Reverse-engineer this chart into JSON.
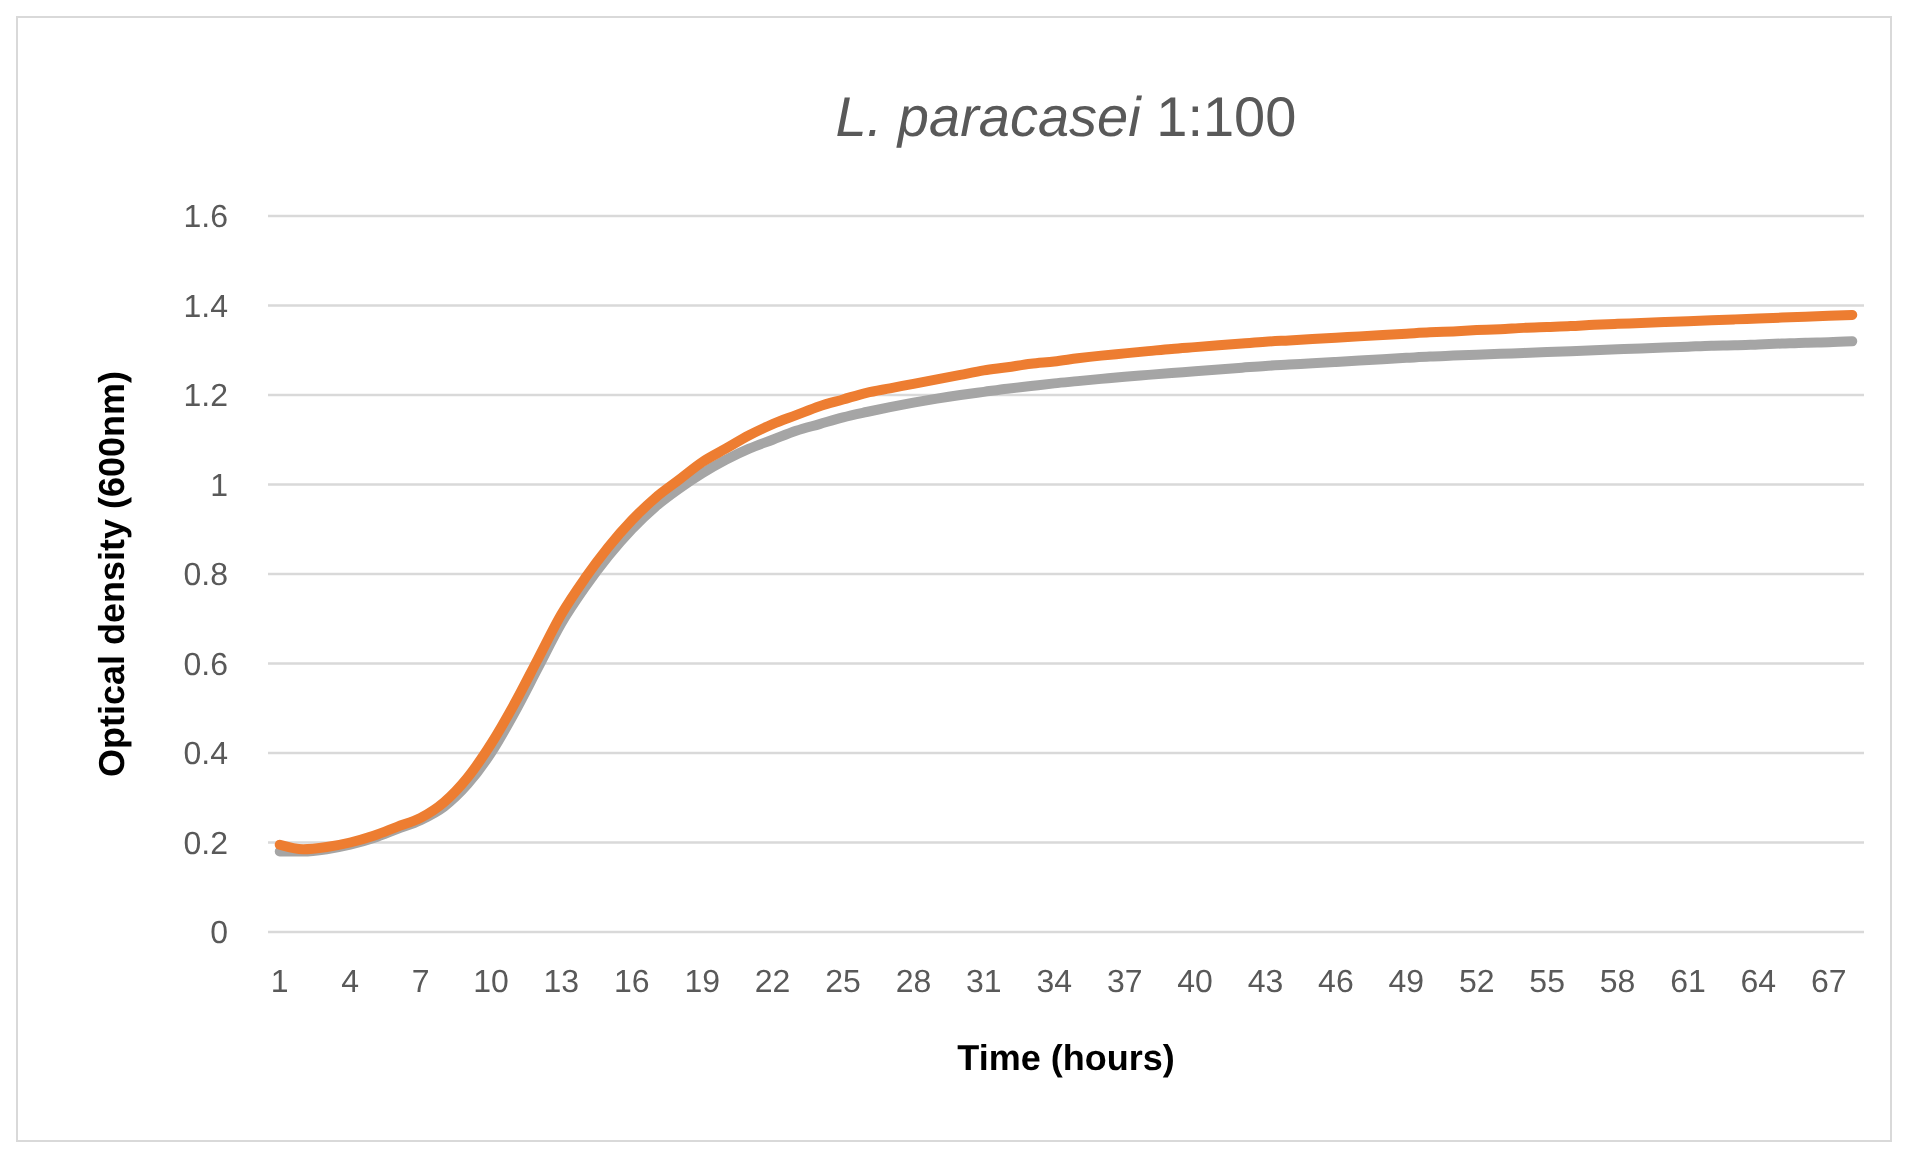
{
  "chart_data": {
    "type": "line",
    "title": "L. paracasei 1:100",
    "xlabel": "Time (hours)",
    "ylabel": "Optical density (600nm)",
    "categories": [
      "1",
      null,
      null,
      "4",
      null,
      null,
      "7",
      null,
      null,
      "10",
      null,
      null,
      "13",
      null,
      null,
      "16",
      null,
      null,
      "19",
      null,
      null,
      "22",
      null,
      null,
      "25",
      null,
      null,
      "28",
      null,
      null,
      "31",
      null,
      null,
      "34",
      null,
      null,
      "37",
      null,
      null,
      "40",
      null,
      null,
      "43",
      null,
      null,
      "46",
      null,
      null,
      "49",
      null,
      null,
      "52",
      null,
      null,
      "55",
      null,
      null,
      "58",
      null,
      null,
      "61",
      null,
      null,
      "64",
      null,
      null,
      "67",
      null
    ],
    "series": [
      {
        "color": "#a5a5a5",
        "values": [
          0.18,
          0.18,
          0.185,
          0.195,
          0.21,
          0.23,
          0.25,
          0.28,
          0.33,
          0.4,
          0.49,
          0.59,
          0.69,
          0.77,
          0.84,
          0.9,
          0.95,
          0.99,
          1.025,
          1.055,
          1.08,
          1.1,
          1.12,
          1.135,
          1.15,
          1.162,
          1.173,
          1.183,
          1.192,
          1.2,
          1.207,
          1.214,
          1.22,
          1.226,
          1.231,
          1.236,
          1.241,
          1.245,
          1.249,
          1.253,
          1.257,
          1.261,
          1.265,
          1.268,
          1.271,
          1.274,
          1.277,
          1.28,
          1.283,
          1.286,
          1.288,
          1.29,
          1.292,
          1.294,
          1.296,
          1.298,
          1.3,
          1.302,
          1.304,
          1.306,
          1.308,
          1.31,
          1.311,
          1.313,
          1.315,
          1.317,
          1.318,
          1.32
        ]
      },
      {
        "color": "#ed7d31",
        "values": [
          0.195,
          0.185,
          0.19,
          0.2,
          0.215,
          0.235,
          0.255,
          0.29,
          0.345,
          0.42,
          0.51,
          0.61,
          0.71,
          0.79,
          0.86,
          0.92,
          0.97,
          1.01,
          1.05,
          1.08,
          1.11,
          1.135,
          1.155,
          1.175,
          1.19,
          1.205,
          1.215,
          1.225,
          1.235,
          1.245,
          1.255,
          1.262,
          1.27,
          1.275,
          1.282,
          1.288,
          1.293,
          1.298,
          1.303,
          1.307,
          1.311,
          1.315,
          1.319,
          1.322,
          1.325,
          1.328,
          1.331,
          1.334,
          1.337,
          1.34,
          1.342,
          1.345,
          1.347,
          1.35,
          1.352,
          1.354,
          1.357,
          1.359,
          1.361,
          1.363,
          1.365,
          1.367,
          1.369,
          1.371,
          1.373,
          1.375,
          1.377,
          1.379
        ]
      }
    ],
    "ylim": [
      0,
      1.6
    ],
    "yticks": [
      0,
      0.2,
      0.4,
      0.6,
      0.8,
      1,
      1.2,
      1.4,
      1.6
    ],
    "grid": "y",
    "marker": "none",
    "line_style": "solid"
  }
}
